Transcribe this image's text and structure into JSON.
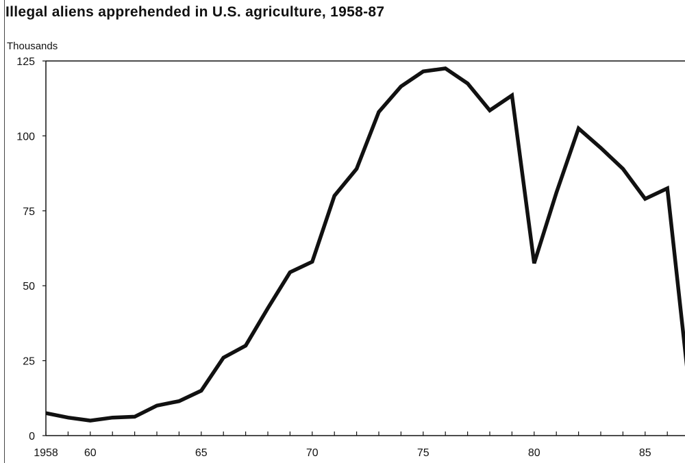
{
  "title": "Illegal aliens apprehended in U.S. agriculture, 1958-87",
  "chart_data": {
    "type": "line",
    "title": "Illegal aliens apprehended in U.S. agriculture, 1958-87",
    "xlabel": "",
    "ylabel": "Thousands",
    "xlim": [
      1958,
      1987
    ],
    "ylim": [
      0,
      125
    ],
    "grid": false,
    "x": [
      1958,
      1959,
      1960,
      1961,
      1962,
      1963,
      1964,
      1965,
      1966,
      1967,
      1968,
      1969,
      1970,
      1971,
      1972,
      1973,
      1974,
      1975,
      1976,
      1977,
      1978,
      1979,
      1980,
      1981,
      1982,
      1983,
      1984,
      1985,
      1986,
      1987
    ],
    "y": [
      7.5,
      6,
      5,
      6,
      6.3,
      10,
      11.5,
      15,
      26,
      30,
      42.5,
      54.5,
      58,
      80,
      89,
      108,
      116.5,
      121.5,
      122.5,
      117.5,
      108.5,
      113.5,
      57.5,
      81,
      102.5,
      96,
      89,
      79,
      82.5,
      15
    ],
    "y_ticks": [
      0,
      25,
      50,
      75,
      100,
      125
    ],
    "y_tick_labels": [
      "0",
      "25",
      "50",
      "75",
      "100",
      "125"
    ],
    "x_label_years": [
      1958,
      1960,
      1965,
      1970,
      1975,
      1980,
      1985
    ],
    "x_tick_labels": [
      "1958",
      "60",
      "65",
      "70",
      "75",
      "80",
      "85"
    ]
  }
}
